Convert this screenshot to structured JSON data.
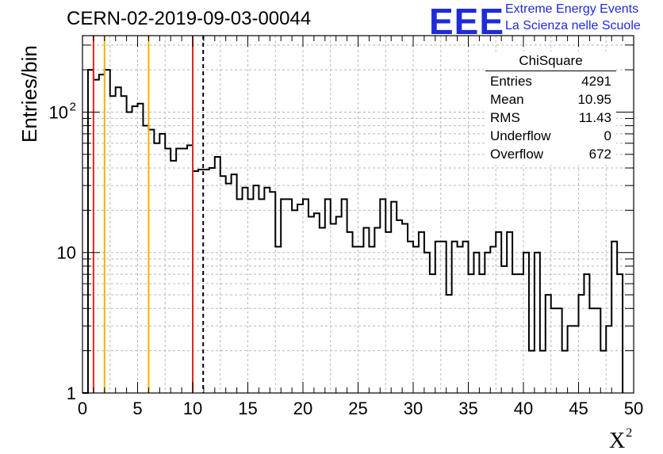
{
  "run_title": "CERN-02-2019-09-03-00044",
  "logo": {
    "word": "EEE",
    "line1": "Extreme Energy Events",
    "line2": "La Scienza nelle Scuole",
    "color": "#1f2bd8"
  },
  "stats_box": {
    "title": "ChiSquare",
    "entries_label": "Entries",
    "entries": "4291",
    "mean_label": "Mean",
    "mean": "10.95",
    "rms_label": "RMS",
    "rms": "11.43",
    "underflow_label": "Underflow",
    "underflow": "0",
    "overflow_label": "Overflow",
    "overflow": "672"
  },
  "chart_data": {
    "type": "histogram",
    "ylabel": "Entries/bin",
    "xlabel": "X",
    "xlabel_superscript": "2",
    "xlim": [
      0,
      50
    ],
    "ylim": [
      1,
      350
    ],
    "yscale": "log",
    "grid": true,
    "bin_width": 0.5,
    "x_ticks": [
      "0",
      "5",
      "10",
      "15",
      "20",
      "25",
      "30",
      "35",
      "40",
      "45",
      "50"
    ],
    "y_ticks": [
      {
        "value": 1,
        "label": "1"
      },
      {
        "value": 10,
        "label": "10"
      },
      {
        "value": 100,
        "label": "10",
        "exp": "2"
      }
    ],
    "values": [
      0,
      200,
      170,
      185,
      200,
      130,
      150,
      130,
      100,
      110,
      115,
      80,
      75,
      60,
      70,
      55,
      45,
      55,
      55,
      58,
      38,
      39,
      39,
      40,
      48,
      35,
      31,
      36,
      24,
      29,
      24,
      30,
      24,
      29,
      27,
      11,
      24,
      24,
      20,
      22,
      24,
      18,
      19,
      15,
      24,
      16,
      18,
      24,
      14,
      11,
      11,
      15,
      11,
      15,
      24,
      14,
      23,
      17,
      16,
      12,
      11,
      14,
      10,
      7,
      12,
      12,
      5,
      12,
      11,
      12,
      7,
      10,
      7,
      10,
      11,
      14,
      8,
      14,
      7,
      7,
      10,
      2,
      10,
      2,
      5,
      4,
      4,
      2,
      3,
      3,
      5,
      7,
      4,
      4,
      2,
      3,
      12,
      7
    ],
    "vertical_lines": [
      {
        "x": 1,
        "color": "#e8231a",
        "style": "solid"
      },
      {
        "x": 2,
        "color": "#f0b400",
        "style": "solid"
      },
      {
        "x": 6,
        "color": "#f0b400",
        "style": "solid"
      },
      {
        "x": 10,
        "color": "#e8231a",
        "style": "solid"
      },
      {
        "x": 10.95,
        "color": "#000000",
        "style": "dashed"
      }
    ]
  }
}
